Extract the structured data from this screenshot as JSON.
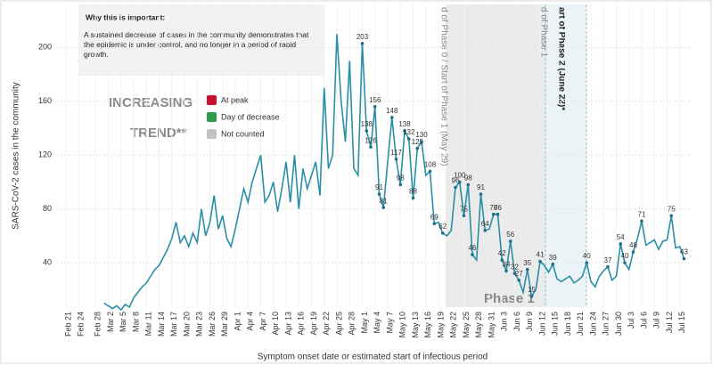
{
  "chart_data": {
    "type": "line",
    "ylabel": "SARS-CoV-2 cases in the community",
    "xlabel": "Symptom onset date or estimated start of infectious period",
    "info_title": "Why this is important:",
    "info_text": "A sustained decrease of cases in the community demonstrates that the epidemic is under control, and no longer in a period of rapid growth.",
    "trend_line1": "INCREASING",
    "trend_line2": "TREND**",
    "legend": [
      {
        "name": "At peak",
        "color": "#c8102e"
      },
      {
        "name": "Day of decrease",
        "color": "#2e9a4a"
      },
      {
        "name": "Not counted",
        "color": "#bfc3c7"
      }
    ],
    "phase_texts": [
      "d of Phase 0 / Start of Phase 1 (May 29)",
      "d of Phase 1",
      "art of Phase 2 (June 22)*",
      "Phase 1"
    ],
    "color": "#2a8ea8",
    "grid": true,
    "ylim": [
      7,
      232
    ],
    "yticks": [
      40,
      80,
      120,
      160,
      200
    ],
    "categories": [
      "Feb 21",
      null,
      null,
      "Feb 24",
      null,
      null,
      null,
      "Feb 28",
      null,
      null,
      "Mar 2",
      null,
      null,
      "Mar 5",
      null,
      null,
      "Mar 8",
      null,
      null,
      "Mar 11",
      null,
      null,
      "Mar 14",
      null,
      null,
      "Mar 17",
      null,
      null,
      "Mar 20",
      null,
      null,
      "Mar 23",
      null,
      null,
      "Mar 26",
      null,
      null,
      "Mar 29",
      null,
      null,
      "Apr 1",
      null,
      null,
      "Apr 4",
      null,
      null,
      "Apr 7",
      null,
      null,
      "Apr 10",
      null,
      null,
      "Apr 13",
      null,
      null,
      "Apr 16",
      null,
      null,
      "Apr 19",
      null,
      null,
      "Apr 22",
      null,
      null,
      "Apr 25",
      null,
      null,
      "Apr 28",
      null,
      null,
      "May 1",
      null,
      null,
      "May 4",
      null,
      null,
      "May 7",
      null,
      null,
      "May 10",
      null,
      null,
      "May 13",
      null,
      null,
      "May 16",
      null,
      null,
      "May 19",
      null,
      null,
      "May 22",
      null,
      null,
      "May 25",
      null,
      null,
      "May 28",
      null,
      null,
      "May 31",
      null,
      null,
      "Jun 3",
      null,
      null,
      "Jun 6",
      null,
      null,
      "Jun 9",
      null,
      null,
      "Jun 12",
      null,
      null,
      "Jun 15",
      null,
      null,
      "Jun 18",
      null,
      null,
      "Jun 21",
      null,
      null,
      "Jun 24",
      null,
      null,
      "Jun 27",
      null,
      null,
      "Jun 30",
      null,
      null,
      "Jul 3",
      null,
      null,
      "Jul 6",
      null,
      null,
      "Jul 9",
      null,
      null,
      "Jul 12",
      null,
      null,
      "Jul 15",
      null
    ],
    "values": [
      null,
      null,
      null,
      null,
      null,
      null,
      null,
      null,
      null,
      10,
      8,
      6,
      8,
      5,
      9,
      7,
      14,
      18,
      22,
      25,
      30,
      35,
      38,
      44,
      50,
      58,
      70,
      55,
      60,
      52,
      62,
      55,
      80,
      60,
      70,
      90,
      65,
      75,
      58,
      52,
      65,
      80,
      95,
      85,
      100,
      110,
      120,
      85,
      90,
      100,
      78,
      95,
      115,
      85,
      120,
      80,
      110,
      95,
      105,
      115,
      90,
      170,
      110,
      120,
      210,
      160,
      130,
      190,
      110,
      105,
      203,
      138,
      126,
      156,
      91,
      81,
      115,
      148,
      117,
      98,
      138,
      132,
      88,
      125,
      130,
      105,
      108,
      69,
      70,
      62,
      60,
      64,
      96,
      100,
      75,
      98,
      46,
      42,
      91,
      64,
      65,
      76,
      76,
      42,
      34,
      56,
      32,
      27,
      18,
      35,
      15,
      20,
      41,
      38,
      33,
      39,
      28,
      26,
      28,
      30,
      25,
      27,
      30,
      40,
      26,
      22,
      30,
      34,
      37,
      27,
      30,
      54,
      40,
      35,
      48,
      58,
      71,
      53,
      55,
      57,
      50,
      56,
      57,
      75,
      51,
      52,
      43
    ],
    "value_labels": [
      null,
      null,
      null,
      null,
      null,
      null,
      null,
      null,
      null,
      null,
      null,
      null,
      null,
      null,
      null,
      null,
      null,
      null,
      null,
      null,
      null,
      null,
      null,
      null,
      null,
      null,
      null,
      null,
      null,
      null,
      null,
      null,
      null,
      null,
      null,
      null,
      null,
      null,
      null,
      null,
      null,
      null,
      null,
      null,
      null,
      null,
      null,
      null,
      null,
      null,
      null,
      null,
      null,
      null,
      null,
      null,
      null,
      null,
      null,
      null,
      null,
      null,
      null,
      null,
      null,
      null,
      null,
      null,
      null,
      null,
      "203",
      "138",
      "126",
      "156",
      "91",
      "81",
      null,
      "148",
      "117",
      "98",
      "138",
      "132",
      "88",
      "125",
      "130",
      null,
      "108",
      "69",
      null,
      "62",
      null,
      null,
      "96",
      "100",
      "75",
      "98",
      "46",
      null,
      "91",
      "64",
      null,
      "76",
      "76",
      "42",
      "34",
      "56",
      "32",
      "27",
      null,
      "35",
      "15",
      null,
      "41",
      null,
      null,
      "39",
      null,
      null,
      null,
      null,
      null,
      null,
      null,
      "40",
      null,
      null,
      null,
      null,
      "37",
      null,
      null,
      "54",
      "40",
      null,
      "48",
      null,
      "71",
      null,
      null,
      null,
      null,
      null,
      null,
      "75",
      null,
      null,
      "43"
    ]
  }
}
